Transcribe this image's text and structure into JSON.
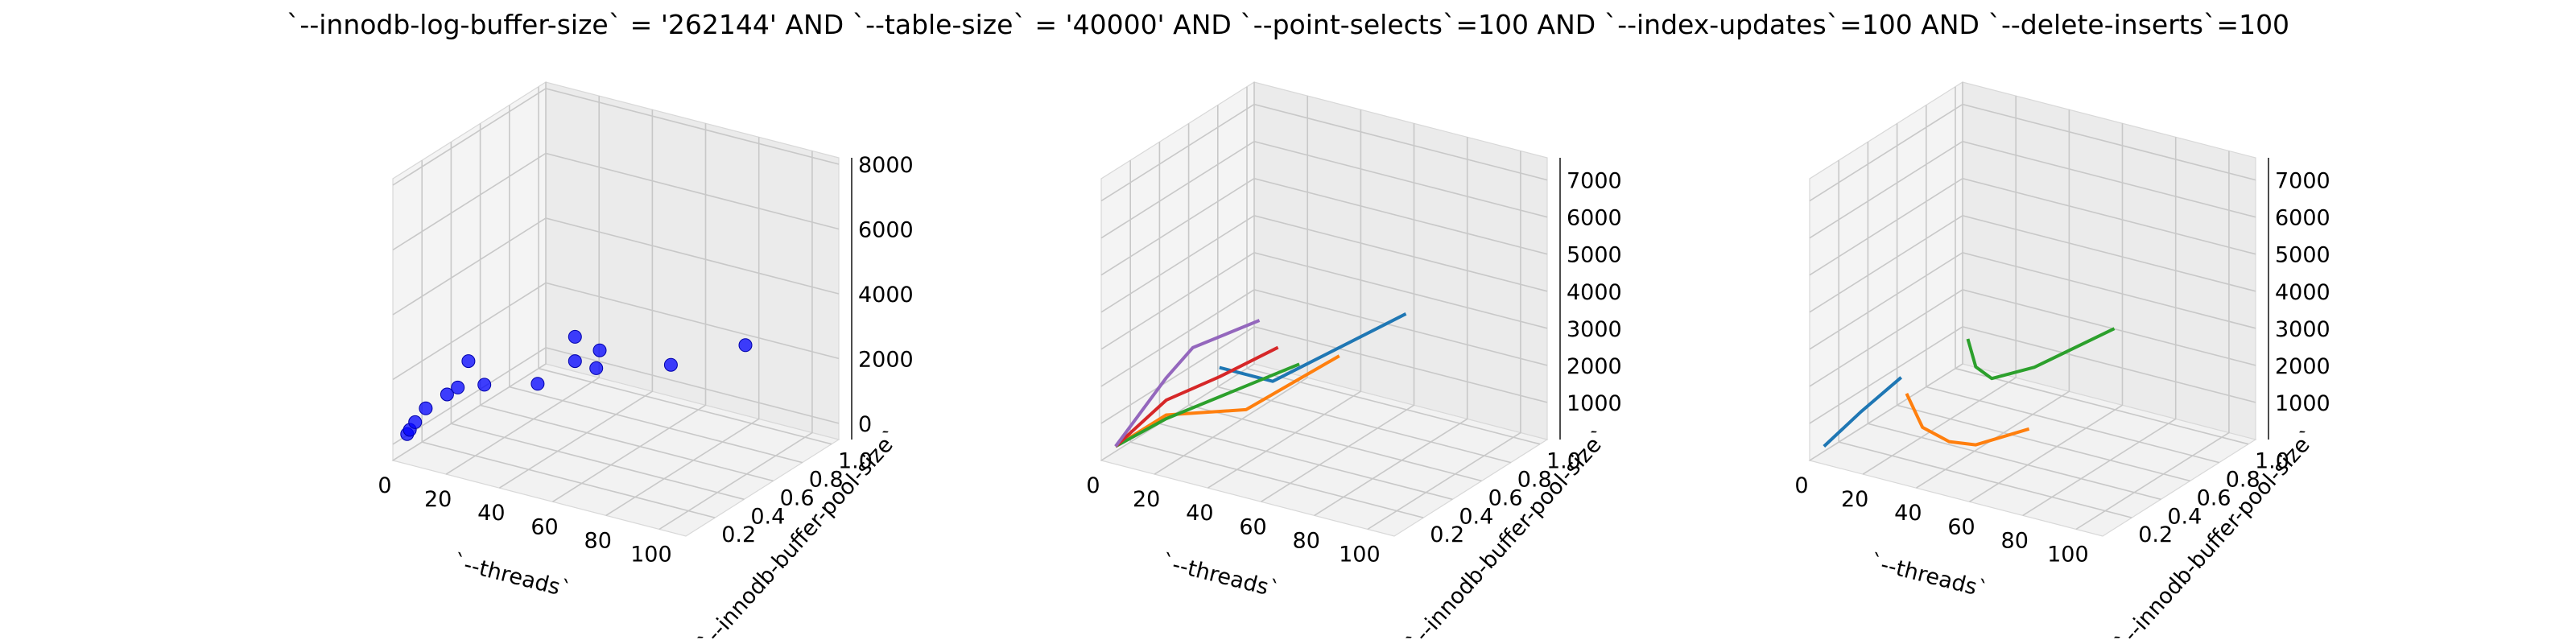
{
  "figure": {
    "title": "`--innodb-log-buffer-size` = '262144' AND `--table-size` = '40000'  AND `--point-selects`=100 AND `--index-updates`=100 AND `--delete-inserts`=100"
  },
  "chart_data": [
    {
      "type": "scatter3d",
      "xlabel": "`--threads`",
      "ylabel": "`--innodb-buffer-pool-size`",
      "xticks": [
        "0",
        "20",
        "40",
        "60",
        "80",
        "100"
      ],
      "yticks": [
        "0.2",
        "0.4",
        "0.6",
        "0.8",
        "1.0"
      ],
      "zticks": [
        "0",
        "2000",
        "4000",
        "6000",
        "8000"
      ],
      "xlim": [
        0,
        110
      ],
      "ylim": [
        0,
        1.05
      ],
      "zlim": [
        -500,
        8200
      ],
      "color": "#0000ff",
      "points": [
        {
          "x": 1,
          "y": 0.08,
          "z": 110
        },
        {
          "x": 2,
          "y": 0.08,
          "z": 260
        },
        {
          "x": 4,
          "y": 0.08,
          "z": 540
        },
        {
          "x": 8,
          "y": 0.08,
          "z": 1050
        },
        {
          "x": 16,
          "y": 0.08,
          "z": 1650
        },
        {
          "x": 20,
          "y": 0.08,
          "z": 1950
        },
        {
          "x": 30,
          "y": 0.08,
          "z": 2250
        },
        {
          "x": 24,
          "y": 0.08,
          "z": 2850
        },
        {
          "x": 50,
          "y": 0.08,
          "z": 2700
        },
        {
          "x": 64,
          "y": 0.08,
          "z": 4450
        },
        {
          "x": 64,
          "y": 0.08,
          "z": 3700
        },
        {
          "x": 72,
          "y": 0.08,
          "z": 3650
        },
        {
          "x": 64,
          "y": 0.25,
          "z": 3550
        },
        {
          "x": 100,
          "y": 0.08,
          "z": 4350
        },
        {
          "x": 128,
          "y": 0.08,
          "z": 5550
        }
      ]
    },
    {
      "type": "line3d",
      "xlabel": "`--threads`",
      "ylabel": "`--innodb-buffer-pool-size`",
      "xticks": [
        "0",
        "20",
        "40",
        "60",
        "80",
        "100"
      ],
      "yticks": [
        "0.2",
        "0.4",
        "0.6",
        "0.8",
        "1.0"
      ],
      "zticks": [
        "1000",
        "2000",
        "3000",
        "4000",
        "5000",
        "6000",
        "7000"
      ],
      "xlim": [
        0,
        110
      ],
      "ylim": [
        0,
        1.05
      ],
      "zlim": [
        0,
        7600
      ],
      "series": [
        {
          "color": "#1f77b4",
          "points": [
            {
              "x": 40,
              "y": 0.08,
              "z": 3050
            },
            {
              "x": 60,
              "y": 0.08,
              "z": 3050
            },
            {
              "x": 110,
              "y": 0.08,
              "z": 5800
            }
          ]
        },
        {
          "color": "#ff7f0e",
          "points": [
            {
              "x": 1,
              "y": 0.08,
              "z": 200
            },
            {
              "x": 20,
              "y": 0.08,
              "z": 1400
            },
            {
              "x": 50,
              "y": 0.08,
              "z": 2100
            },
            {
              "x": 85,
              "y": 0.08,
              "z": 4200
            }
          ]
        },
        {
          "color": "#2ca02c",
          "points": [
            {
              "x": 1,
              "y": 0.08,
              "z": 200
            },
            {
              "x": 20,
              "y": 0.08,
              "z": 1300
            },
            {
              "x": 45,
              "y": 0.08,
              "z": 2500
            },
            {
              "x": 70,
              "y": 0.08,
              "z": 3700
            }
          ]
        },
        {
          "color": "#d62728",
          "points": [
            {
              "x": 1,
              "y": 0.08,
              "z": 200
            },
            {
              "x": 20,
              "y": 0.08,
              "z": 1800
            },
            {
              "x": 40,
              "y": 0.08,
              "z": 2800
            },
            {
              "x": 62,
              "y": 0.08,
              "z": 4000
            }
          ]
        },
        {
          "color": "#9467bd",
          "points": [
            {
              "x": 1,
              "y": 0.08,
              "z": 200
            },
            {
              "x": 20,
              "y": 0.08,
              "z": 2400
            },
            {
              "x": 30,
              "y": 0.08,
              "z": 3400
            },
            {
              "x": 55,
              "y": 0.08,
              "z": 4600
            }
          ]
        }
      ]
    },
    {
      "type": "line3d",
      "xlabel": "`--threads`",
      "ylabel": "`--innodb-buffer-pool-size`",
      "xticks": [
        "0",
        "20",
        "40",
        "60",
        "80",
        "100"
      ],
      "yticks": [
        "0.2",
        "0.4",
        "0.6",
        "0.8",
        "1.0"
      ],
      "zticks": [
        "1000",
        "2000",
        "3000",
        "4000",
        "5000",
        "6000",
        "7000"
      ],
      "xlim": [
        0,
        110
      ],
      "ylim": [
        0,
        1.05
      ],
      "zlim": [
        0,
        7600
      ],
      "series": [
        {
          "color": "#1f77b4",
          "points": [
            {
              "x": 1,
              "y": 0.08,
              "z": 200
            },
            {
              "x": 15,
              "y": 0.08,
              "z": 1400
            },
            {
              "x": 30,
              "y": 0.08,
              "z": 2600
            }
          ]
        },
        {
          "color": "#ff7f0e",
          "points": [
            {
              "x": 32,
              "y": 0.08,
              "z": 2200
            },
            {
              "x": 38,
              "y": 0.08,
              "z": 1400
            },
            {
              "x": 48,
              "y": 0.08,
              "z": 1200
            },
            {
              "x": 58,
              "y": 0.08,
              "z": 1300
            },
            {
              "x": 78,
              "y": 0.08,
              "z": 2100
            }
          ]
        },
        {
          "color": "#2ca02c",
          "points": [
            {
              "x": 55,
              "y": 0.08,
              "z": 4100
            },
            {
              "x": 58,
              "y": 0.08,
              "z": 3400
            },
            {
              "x": 64,
              "y": 0.08,
              "z": 3200
            },
            {
              "x": 80,
              "y": 0.08,
              "z": 3800
            },
            {
              "x": 110,
              "y": 0.08,
              "z": 5400
            }
          ]
        }
      ]
    }
  ]
}
